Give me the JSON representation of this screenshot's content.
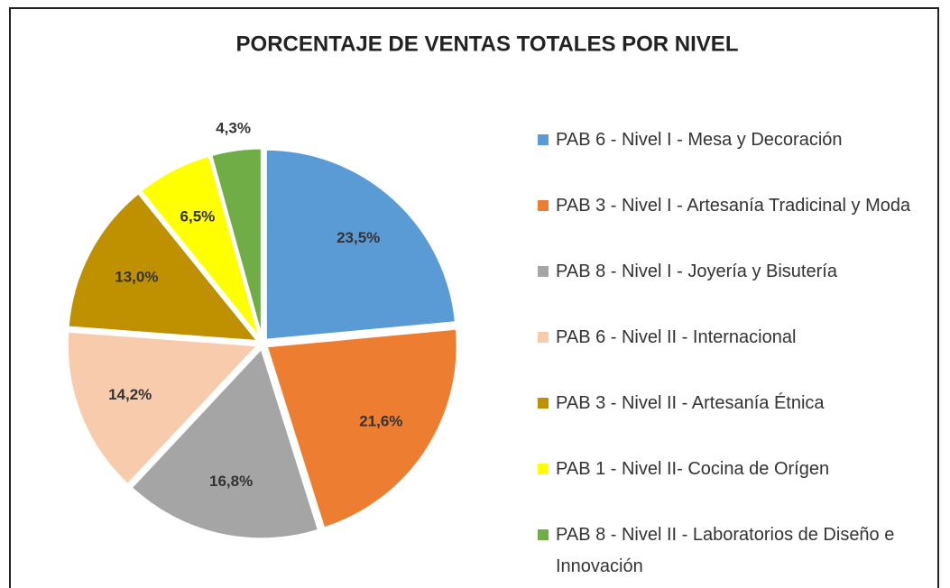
{
  "chart_data": {
    "type": "pie",
    "title": "PORCENTAJE DE VENTAS TOTALES POR NIVEL",
    "categories": [
      "PAB 6 - Nivel I - Mesa y Decoración",
      "PAB 3 - Nivel I - Artesanía Tradicinal y Moda",
      "PAB 8 - Nivel I - Joyería y Bisutería",
      "PAB 6 - Nivel II - Internacional",
      "PAB 3 - Nivel II - Artesanía Étnica",
      "PAB 1 - Nivel II- Cocina de Orígen",
      "PAB 8 - Nivel II - Laboratorios de Diseño e Innovación"
    ],
    "values": [
      23.5,
      21.6,
      16.8,
      14.2,
      13.0,
      6.5,
      4.3
    ],
    "value_labels": [
      "23,5%",
      "21,6%",
      "16,8%",
      "14,2%",
      "13,0%",
      "6,5%",
      "4,3%"
    ],
    "colors": [
      "#5b9bd5",
      "#ed7d31",
      "#a5a5a5",
      "#f8cbad",
      "#bf9000",
      "#ffff00",
      "#70ad47"
    ],
    "legend": "right"
  }
}
